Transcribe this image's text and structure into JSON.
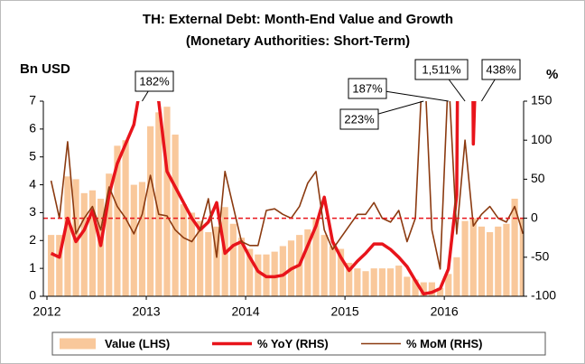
{
  "chart_data": {
    "type": "bar-line",
    "title": "TH: External Debt: Month-End Value and Growth",
    "subtitle": "(Monetary Authorities: Short-Term)",
    "y_label": "Bn USD",
    "y2_label": "%",
    "categories": [
      "2012",
      null,
      null,
      null,
      null,
      null,
      null,
      null,
      null,
      null,
      null,
      null,
      "2013",
      null,
      null,
      null,
      null,
      null,
      null,
      null,
      null,
      null,
      null,
      null,
      "2014",
      null,
      null,
      null,
      null,
      null,
      null,
      null,
      null,
      null,
      null,
      null,
      "2015",
      null,
      null,
      null,
      null,
      null,
      null,
      null,
      null,
      null,
      null,
      null,
      "2016",
      null,
      null,
      null,
      null,
      null,
      null,
      null,
      null,
      null
    ],
    "series": [
      {
        "name": "Value (LHS)",
        "type": "bar",
        "color": "#f9c89b",
        "axis": "y",
        "values": [
          2.2,
          2.2,
          4.3,
          4.2,
          3.7,
          3.8,
          3.5,
          4.4,
          5.4,
          5.6,
          4.0,
          4.1,
          6.1,
          6.6,
          6.8,
          5.8,
          3.3,
          3.0,
          2.7,
          2.3,
          2.5,
          3.2,
          2.6,
          2.1,
          1.7,
          1.5,
          1.5,
          1.6,
          1.8,
          2.0,
          2.2,
          2.4,
          2.8,
          2.2,
          1.8,
          1.7,
          1.2,
          1.0,
          0.9,
          1.0,
          1.0,
          1.0,
          1.1,
          0.7,
          0.6,
          0.5,
          0.5,
          0.3,
          0.8,
          1.4,
          2.7,
          2.8,
          2.5,
          2.3,
          2.5,
          2.6,
          3.5,
          2.8
        ]
      },
      {
        "name": "% YoY (RHS)",
        "type": "line",
        "color": "#e8141b",
        "axis": "y2",
        "values": [
          -45,
          -50,
          0,
          -30,
          -15,
          10,
          -35,
          30,
          70,
          95,
          120,
          182,
          170,
          150,
          60,
          40,
          20,
          0,
          -15,
          -5,
          20,
          -45,
          -35,
          -30,
          -50,
          -68,
          -75,
          -75,
          -73,
          -65,
          -60,
          -35,
          -10,
          27,
          -30,
          -50,
          -67,
          -55,
          -45,
          -33,
          -33,
          -40,
          -50,
          -62,
          -80,
          -97,
          -95,
          -90,
          -65,
          30,
          1511,
          95,
          438,
          null,
          null,
          null,
          null,
          null
        ],
        "value_labels": [
          null,
          null,
          null,
          null,
          null,
          null,
          null,
          null,
          null,
          null,
          null,
          "182%",
          null,
          null,
          null,
          null,
          null,
          null,
          null,
          null,
          null,
          null,
          null,
          null,
          null,
          null,
          null,
          null,
          null,
          null,
          null,
          null,
          null,
          null,
          null,
          null,
          null,
          null,
          null,
          null,
          null,
          null,
          null,
          null,
          null,
          null,
          null,
          null,
          null,
          null,
          "1,511%",
          null,
          "438%",
          null,
          null,
          null,
          null,
          null
        ]
      },
      {
        "name": "% MoM (RHS)",
        "type": "line",
        "color": "#8b3a10",
        "axis": "y2",
        "values": [
          48,
          0,
          98,
          -20,
          0,
          15,
          -15,
          40,
          15,
          0,
          -20,
          5,
          55,
          5,
          3,
          -15,
          -25,
          -30,
          -15,
          25,
          -50,
          60,
          15,
          -30,
          -35,
          -35,
          10,
          12,
          5,
          0,
          15,
          45,
          60,
          -15,
          -40,
          -25,
          -10,
          5,
          5,
          20,
          0,
          -5,
          10,
          -30,
          0,
          223,
          -15,
          -65,
          187,
          -20,
          100,
          -10,
          5,
          15,
          0,
          -5,
          15,
          -20
        ],
        "value_labels": [
          null,
          null,
          null,
          null,
          null,
          null,
          null,
          null,
          null,
          null,
          null,
          null,
          null,
          null,
          null,
          null,
          null,
          null,
          null,
          null,
          null,
          null,
          null,
          null,
          null,
          null,
          null,
          null,
          null,
          null,
          null,
          null,
          null,
          null,
          null,
          null,
          null,
          null,
          null,
          null,
          null,
          null,
          null,
          null,
          null,
          "223%",
          null,
          null,
          "187%",
          null,
          null,
          null,
          null,
          null,
          null,
          null,
          null,
          null
        ]
      }
    ],
    "ylim": [
      0,
      7
    ],
    "yticks": [
      0,
      1,
      2,
      3,
      4,
      5,
      6,
      7
    ],
    "y2lim": [
      -100,
      150
    ],
    "y2ticks": [
      -100,
      -50,
      0,
      50,
      100,
      150
    ],
    "zero_line_color": "#e8141b"
  }
}
